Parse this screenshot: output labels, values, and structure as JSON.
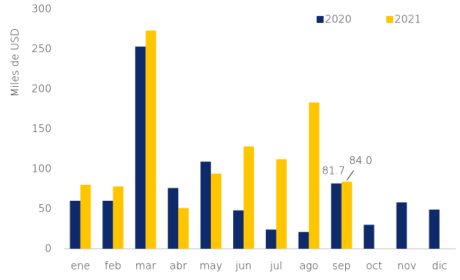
{
  "chart_data": {
    "type": "bar",
    "y_label": "Miles  de USD",
    "categories": [
      "ene",
      "feb",
      "mar",
      "abr",
      "may",
      "jun",
      "jul",
      "ago",
      "sep",
      "oct",
      "nov",
      "dic"
    ],
    "series": [
      {
        "name": "2020",
        "color": "#0e2a6b",
        "values": [
          60,
          60,
          253,
          76,
          109,
          48,
          24,
          21,
          81.7,
          30,
          58,
          49
        ],
        "value_labels": [
          null,
          null,
          null,
          null,
          null,
          null,
          null,
          null,
          "81.7",
          null,
          null,
          null
        ]
      },
      {
        "name": "2021",
        "color": "#ffc600",
        "values": [
          80,
          78,
          273,
          51,
          94,
          128,
          112,
          183,
          84.0,
          null,
          null,
          null
        ],
        "value_labels": [
          null,
          null,
          null,
          null,
          null,
          null,
          null,
          null,
          "84.0",
          null,
          null,
          null
        ]
      }
    ],
    "ylim": [
      0,
      300
    ],
    "yticks": [
      0,
      50,
      100,
      150,
      200,
      250,
      300
    ],
    "grid": false,
    "legend": "top-right"
  }
}
